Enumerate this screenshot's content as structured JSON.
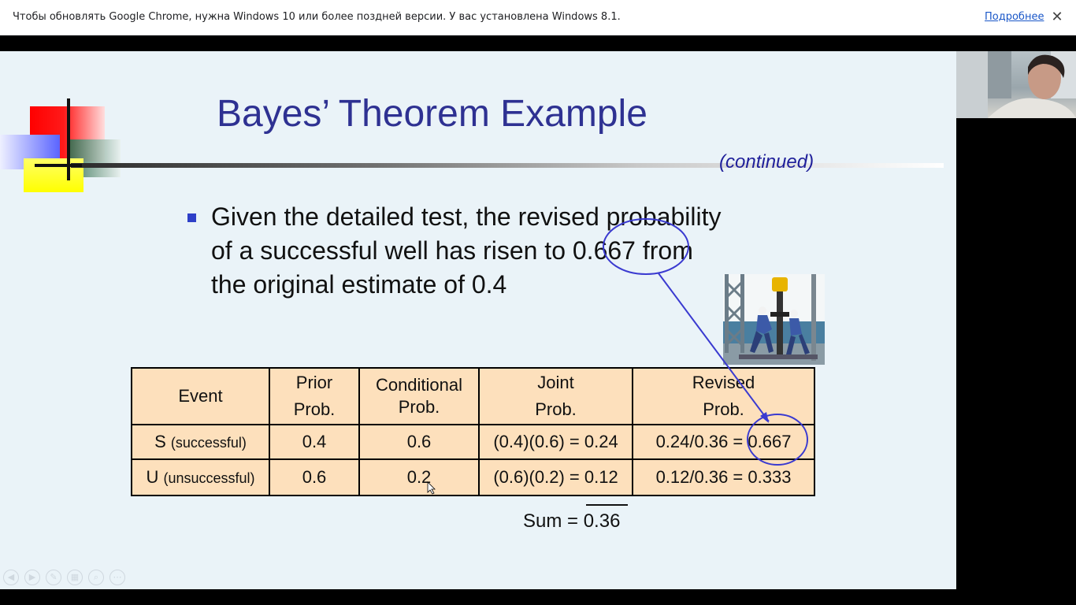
{
  "browser": {
    "infobar": {
      "message": "Чтобы обновлять Google Chrome, нужна Windows 10 или более поздней версии. У вас установлена Windows 8.1.",
      "link_label": "Подробнее",
      "close_glyph": "✕"
    }
  },
  "slide": {
    "title": "Bayes’ Theorem Example",
    "subtitle": "(continued)",
    "bullet_lines": [
      "Given the detailed test, the revised probability",
      "of a successful well has risen to 0.667 from",
      "the original estimate of 0.4"
    ],
    "table": {
      "headers": [
        {
          "line1": "Event",
          "line2": ""
        },
        {
          "line1": "Prior",
          "line2": "Prob."
        },
        {
          "line1": "Conditional",
          "line2": "Prob."
        },
        {
          "line1": "Joint",
          "line2": "Prob."
        },
        {
          "line1": "Revised",
          "line2": "Prob."
        }
      ],
      "rows": [
        {
          "event": "S",
          "event_note": "(successful)",
          "prior": "0.4",
          "conditional": "0.6",
          "joint": "(0.4)(0.6) = 0.24",
          "revised": "0.24/0.36 = 0.667"
        },
        {
          "event": "U",
          "event_note": "(unsuccessful)",
          "prior": "0.6",
          "conditional": "0.2",
          "joint": "(0.6)(0.2) = 0.12",
          "revised": "0.12/0.36 = 0.333"
        }
      ]
    },
    "sum_label": "Sum = ",
    "sum_value": "0.36",
    "colors": {
      "title": "#2e3192",
      "table_fill": "#fde0bc",
      "annotation": "#3a3ad0",
      "bullet": "#2e3fc8"
    }
  },
  "icons": {
    "nav_controls": [
      "prev-icon",
      "next-icon",
      "pen-icon",
      "slides-icon",
      "zoom-icon",
      "more-icon"
    ]
  }
}
